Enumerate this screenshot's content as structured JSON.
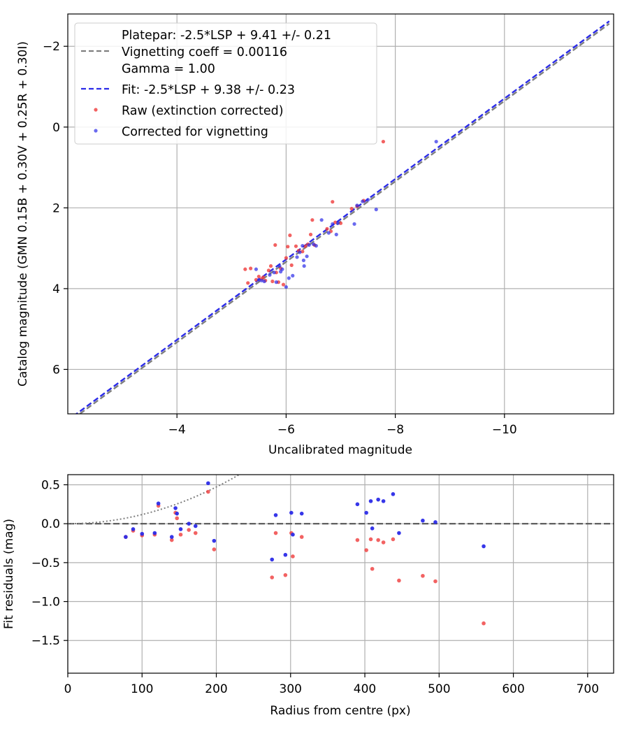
{
  "chart_data": [
    {
      "type": "scatter",
      "xlabel": "Uncalibrated magnitude",
      "ylabel": "Catalog magnitude (GMN 0.15B + 0.30V + 0.25R + 0.30I)",
      "xlim": [
        -2.0,
        -12.0
      ],
      "ylim": [
        7.1,
        -2.8
      ],
      "x_ticks": [
        -4,
        -6,
        -8,
        -10
      ],
      "x_tick_labels": [
        "−4",
        "−6",
        "−8",
        "−10"
      ],
      "y_ticks": [
        -2,
        0,
        2,
        4,
        6
      ],
      "y_tick_labels": [
        "−2",
        "0",
        "2",
        "4",
        "6"
      ],
      "grid": true,
      "legend": {
        "placement": "top-left",
        "entries": [
          {
            "label": "Platepar: -2.5*LSP + 9.41 +/- 0.21",
            "marker": "none"
          },
          {
            "label": "Vignetting coeff = 0.00116",
            "marker": "gray-dash"
          },
          {
            "label": "Gamma = 1.00",
            "marker": "none"
          },
          {
            "label": "Fit: -2.5*LSP + 9.38 +/- 0.23",
            "marker": "blue-dash"
          },
          {
            "label": "Raw (extinction corrected)",
            "marker": "red-dot"
          },
          {
            "label": "Corrected for vignetting",
            "marker": "blue-dot"
          }
        ]
      },
      "lines": [
        {
          "name": "Platepar",
          "color": "#7f7f7f",
          "x": [
            -2.1,
            -11.92
          ],
          "y": [
            7.22,
            -2.56
          ]
        },
        {
          "name": "Fit",
          "color": "#2b2be8",
          "x": [
            -2.1,
            -11.92
          ],
          "y": [
            7.16,
            -2.62
          ]
        }
      ],
      "series": [
        {
          "name": "Raw (extinction corrected)",
          "color": "#ef3b3b",
          "points": [
            [
              -5.25,
              3.52
            ],
            [
              -5.35,
              3.5
            ],
            [
              -5.3,
              3.86
            ],
            [
              -5.45,
              3.78
            ],
            [
              -5.5,
              3.7
            ],
            [
              -5.55,
              3.76
            ],
            [
              -5.58,
              3.72
            ],
            [
              -5.62,
              3.8
            ],
            [
              -5.68,
              3.55
            ],
            [
              -5.72,
              3.44
            ],
            [
              -5.75,
              3.82
            ],
            [
              -5.8,
              2.92
            ],
            [
              -5.82,
              3.6
            ],
            [
              -5.86,
              3.84
            ],
            [
              -5.9,
              3.5
            ],
            [
              -5.95,
              3.9
            ],
            [
              -6.0,
              3.24
            ],
            [
              -6.03,
              2.96
            ],
            [
              -6.07,
              2.68
            ],
            [
              -6.1,
              3.42
            ],
            [
              -6.18,
              2.95
            ],
            [
              -6.23,
              3.06
            ],
            [
              -6.3,
              3.08
            ],
            [
              -6.35,
              2.95
            ],
            [
              -6.4,
              2.9
            ],
            [
              -6.45,
              2.66
            ],
            [
              -6.48,
              2.3
            ],
            [
              -6.52,
              2.92
            ],
            [
              -6.75,
              2.52
            ],
            [
              -6.82,
              2.58
            ],
            [
              -6.85,
              1.85
            ],
            [
              -6.9,
              2.36
            ],
            [
              -7.0,
              2.38
            ],
            [
              -7.2,
              2.02
            ],
            [
              -7.3,
              1.96
            ],
            [
              -7.42,
              1.82
            ],
            [
              -7.78,
              0.36
            ]
          ]
        },
        {
          "name": "Corrected for vignetting",
          "color": "#2b2be8",
          "points": [
            [
              -5.45,
              3.52
            ],
            [
              -5.5,
              3.78
            ],
            [
              -5.55,
              3.8
            ],
            [
              -5.6,
              3.82
            ],
            [
              -5.7,
              3.66
            ],
            [
              -5.78,
              3.6
            ],
            [
              -5.82,
              3.84
            ],
            [
              -5.88,
              3.44
            ],
            [
              -5.9,
              3.58
            ],
            [
              -5.93,
              3.52
            ],
            [
              -6.0,
              3.96
            ],
            [
              -6.05,
              3.74
            ],
            [
              -6.12,
              3.68
            ],
            [
              -6.2,
              3.22
            ],
            [
              -6.25,
              3.1
            ],
            [
              -6.3,
              2.94
            ],
            [
              -6.32,
              3.3
            ],
            [
              -6.33,
              3.44
            ],
            [
              -6.38,
              3.2
            ],
            [
              -6.42,
              2.92
            ],
            [
              -6.5,
              2.9
            ],
            [
              -6.55,
              2.94
            ],
            [
              -6.65,
              2.3
            ],
            [
              -6.78,
              2.62
            ],
            [
              -6.85,
              2.4
            ],
            [
              -6.92,
              2.66
            ],
            [
              -6.95,
              2.38
            ],
            [
              -7.25,
              2.4
            ],
            [
              -7.3,
              1.94
            ],
            [
              -7.4,
              1.84
            ],
            [
              -7.5,
              1.8
            ],
            [
              -7.65,
              2.04
            ],
            [
              -8.75,
              0.36
            ]
          ]
        }
      ]
    },
    {
      "type": "scatter",
      "xlabel": "Radius from centre (px)",
      "ylabel": "Fit residuals (mag)",
      "xlim": [
        0,
        735
      ],
      "ylim": [
        -1.92,
        0.63
      ],
      "x_ticks": [
        0,
        100,
        200,
        300,
        400,
        500,
        600,
        700
      ],
      "x_tick_labels": [
        "0",
        "100",
        "200",
        "300",
        "400",
        "500",
        "600",
        "700"
      ],
      "y_ticks": [
        0.5,
        0.0,
        -0.5,
        -1.0,
        -1.5
      ],
      "y_tick_labels": [
        "0.5",
        "0.0",
        "−0.5",
        "−1.0",
        "−1.5"
      ],
      "grid": true,
      "reference_lines": [
        {
          "name": "zero",
          "style": "dashed",
          "color": "#555555",
          "value": 0.0
        },
        {
          "name": "vignetting model",
          "style": "dotted",
          "color": "#7f7f7f",
          "coeff": 0.00116
        }
      ],
      "series": [
        {
          "name": "Raw (extinction corrected)",
          "color": "#ef3b3b",
          "points": [
            [
              78,
              -0.17
            ],
            [
              88,
              -0.09
            ],
            [
              100,
              -0.15
            ],
            [
              117,
              -0.14
            ],
            [
              122,
              0.23
            ],
            [
              140,
              -0.21
            ],
            [
              145,
              0.14
            ],
            [
              147,
              0.07
            ],
            [
              152,
              -0.14
            ],
            [
              163,
              -0.08
            ],
            [
              172,
              -0.12
            ],
            [
              189,
              0.41
            ],
            [
              197,
              -0.33
            ],
            [
              275,
              -0.69
            ],
            [
              280,
              -0.12
            ],
            [
              293,
              -0.66
            ],
            [
              301,
              -0.12
            ],
            [
              303,
              -0.42
            ],
            [
              315,
              -0.17
            ],
            [
              390,
              -0.21
            ],
            [
              402,
              -0.34
            ],
            [
              408,
              -0.2
            ],
            [
              410,
              -0.58
            ],
            [
              418,
              -0.21
            ],
            [
              425,
              -0.24
            ],
            [
              438,
              -0.2
            ],
            [
              446,
              -0.73
            ],
            [
              478,
              -0.67
            ],
            [
              495,
              -0.74
            ],
            [
              560,
              -1.28
            ]
          ]
        },
        {
          "name": "Corrected for vignetting",
          "color": "#2b2be8",
          "points": [
            [
              78,
              -0.17
            ],
            [
              88,
              -0.07
            ],
            [
              100,
              -0.13
            ],
            [
              117,
              -0.12
            ],
            [
              122,
              0.26
            ],
            [
              140,
              -0.17
            ],
            [
              145,
              0.2
            ],
            [
              147,
              0.13
            ],
            [
              152,
              -0.07
            ],
            [
              163,
              0.0
            ],
            [
              172,
              -0.03
            ],
            [
              189,
              0.52
            ],
            [
              197,
              -0.22
            ],
            [
              275,
              -0.46
            ],
            [
              280,
              0.11
            ],
            [
              293,
              -0.4
            ],
            [
              301,
              0.14
            ],
            [
              303,
              -0.14
            ],
            [
              315,
              0.13
            ],
            [
              390,
              0.25
            ],
            [
              402,
              0.14
            ],
            [
              408,
              0.29
            ],
            [
              410,
              -0.06
            ],
            [
              418,
              0.31
            ],
            [
              425,
              0.29
            ],
            [
              438,
              0.38
            ],
            [
              446,
              -0.12
            ],
            [
              478,
              0.04
            ],
            [
              495,
              0.02
            ],
            [
              560,
              -0.29
            ]
          ]
        }
      ]
    }
  ]
}
